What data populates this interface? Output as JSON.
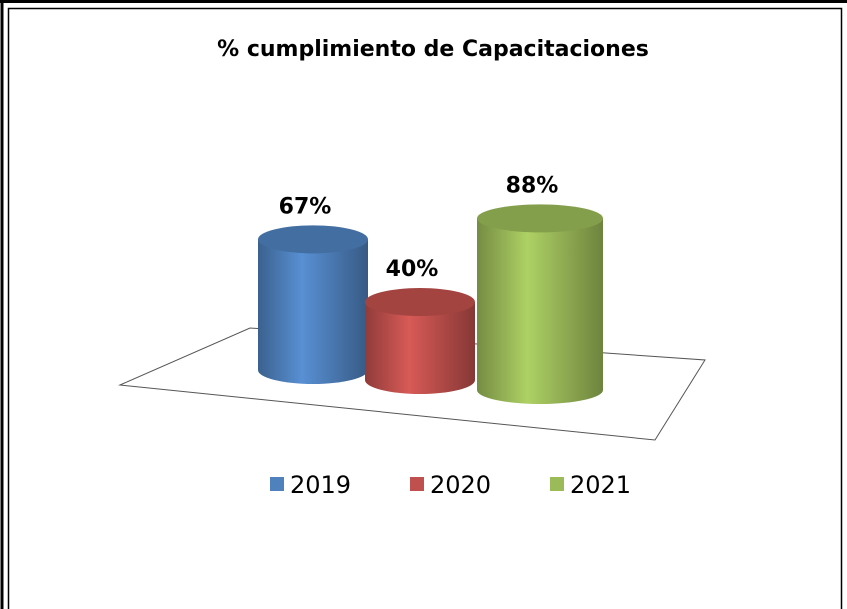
{
  "chart_data": {
    "type": "bar3d-cylinder",
    "title": "% cumplimiento de Capacitaciones",
    "series": [
      {
        "name": "2019",
        "color": "#4f81bd",
        "values": [
          67
        ],
        "value_labels": [
          "67%"
        ]
      },
      {
        "name": "2020",
        "color": "#c0504d",
        "values": [
          40
        ],
        "value_labels": [
          "40%"
        ]
      },
      {
        "name": "2021",
        "color": "#9bbb59",
        "values": [
          88
        ],
        "value_labels": [
          "88%"
        ]
      }
    ],
    "legend": "bottom"
  }
}
